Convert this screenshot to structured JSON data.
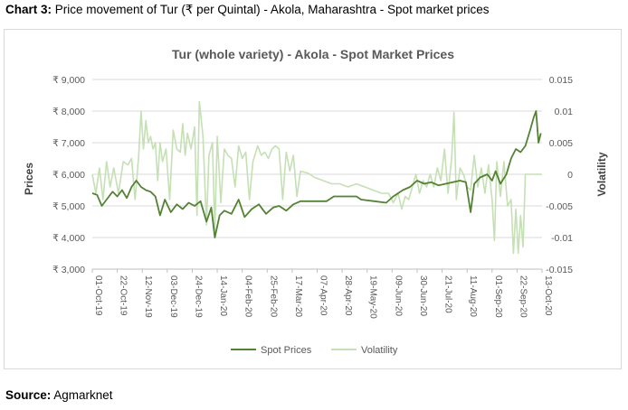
{
  "caption": {
    "label": "Chart 3:",
    "text": " Price movement of Tur (₹ per Quintal) - Akola, Maharashtra - Spot market prices"
  },
  "source": {
    "label": "Source:",
    "text": " Agmarknet"
  },
  "colors": {
    "spot": "#548235",
    "volatility": "#c5e0b4",
    "grid": "#d9d9d9",
    "text": "#595959"
  },
  "chart_data": {
    "type": "line",
    "title": "Tur (whole variety) - Akola - Spot Market Prices",
    "ylabel": "Prices",
    "y2label": "Volatility",
    "ylim": [
      3000,
      9000
    ],
    "y2lim": [
      -0.015,
      0.015
    ],
    "y_ticks": [
      "₹ 3,000",
      "₹ 4,000",
      "₹ 5,000",
      "₹ 6,000",
      "₹ 7,000",
      "₹ 8,000",
      "₹ 9,000"
    ],
    "y_tick_values": [
      3000,
      4000,
      5000,
      6000,
      7000,
      8000,
      9000
    ],
    "y2_ticks": [
      "-0.015",
      "-0.01",
      "-0.005",
      "0",
      "0.005",
      "0.01",
      "0.015"
    ],
    "y2_tick_values": [
      -0.015,
      -0.01,
      -0.005,
      0,
      0.005,
      0.01,
      0.015
    ],
    "x_ticks": [
      "01-Oct-19",
      "22-Oct-19",
      "12-Nov-19",
      "03-Dec-19",
      "24-Dec-19",
      "14-Jan-20",
      "04-Feb-20",
      "25-Feb-20",
      "17-Mar-20",
      "07-Apr-20",
      "28-Apr-20",
      "19-May-20",
      "09-Jun-20",
      "30-Jun-20",
      "21-Jul-20",
      "11-Aug-20",
      "01-Sep-20",
      "22-Sep-20",
      "13-Oct-20"
    ],
    "grid": true,
    "legend_position": "bottom",
    "series": [
      {
        "name": "Spot Prices",
        "points": [
          [
            "01-Oct-19",
            5400
          ],
          [
            "05-Oct-19",
            5350
          ],
          [
            "09-Oct-19",
            5000
          ],
          [
            "13-Oct-19",
            5200
          ],
          [
            "18-Oct-19",
            5450
          ],
          [
            "22-Oct-19",
            5300
          ],
          [
            "26-Oct-19",
            5500
          ],
          [
            "30-Oct-19",
            5250
          ],
          [
            "03-Nov-19",
            5600
          ],
          [
            "07-Nov-19",
            5800
          ],
          [
            "11-Nov-19",
            5600
          ],
          [
            "15-Nov-19",
            5500
          ],
          [
            "19-Nov-19",
            5450
          ],
          [
            "23-Nov-19",
            5300
          ],
          [
            "27-Nov-19",
            4700
          ],
          [
            "01-Dec-19",
            5200
          ],
          [
            "06-Dec-19",
            4800
          ],
          [
            "11-Dec-19",
            5050
          ],
          [
            "16-Dec-19",
            4900
          ],
          [
            "21-Dec-19",
            5100
          ],
          [
            "26-Dec-19",
            5000
          ],
          [
            "31-Dec-19",
            5150
          ],
          [
            "05-Jan-20",
            4500
          ],
          [
            "09-Jan-20",
            4950
          ],
          [
            "12-Jan-20",
            4000
          ],
          [
            "16-Jan-20",
            4700
          ],
          [
            "20-Jan-20",
            4850
          ],
          [
            "26-Jan-20",
            4750
          ],
          [
            "01-Feb-20",
            5200
          ],
          [
            "06-Feb-20",
            4650
          ],
          [
            "12-Feb-20",
            4900
          ],
          [
            "18-Feb-20",
            5050
          ],
          [
            "24-Feb-20",
            4750
          ],
          [
            "01-Mar-20",
            4950
          ],
          [
            "06-Mar-20",
            5000
          ],
          [
            "12-Mar-20",
            4850
          ],
          [
            "18-Mar-20",
            5050
          ],
          [
            "24-Mar-20",
            5150
          ],
          [
            "15-Apr-20",
            5150
          ],
          [
            "21-Apr-20",
            5300
          ],
          [
            "10-May-20",
            5300
          ],
          [
            "14-May-20",
            5200
          ],
          [
            "25-May-20",
            5150
          ],
          [
            "04-Jun-20",
            5100
          ],
          [
            "10-Jun-20",
            5300
          ],
          [
            "18-Jun-20",
            5500
          ],
          [
            "24-Jun-20",
            5600
          ],
          [
            "30-Jun-20",
            5800
          ],
          [
            "06-Jul-20",
            5700
          ],
          [
            "12-Jul-20",
            5750
          ],
          [
            "18-Jul-20",
            5650
          ],
          [
            "24-Jul-20",
            5700
          ],
          [
            "30-Jul-20",
            5750
          ],
          [
            "05-Aug-20",
            5800
          ],
          [
            "10-Aug-20",
            5750
          ],
          [
            "14-Aug-20",
            4800
          ],
          [
            "17-Aug-20",
            5700
          ],
          [
            "22-Aug-20",
            5900
          ],
          [
            "28-Aug-20",
            6000
          ],
          [
            "01-Sep-20",
            5800
          ],
          [
            "04-Sep-20",
            6100
          ],
          [
            "08-Sep-20",
            5700
          ],
          [
            "13-Sep-20",
            6000
          ],
          [
            "17-Sep-20",
            6500
          ],
          [
            "21-Sep-20",
            6800
          ],
          [
            "25-Sep-20",
            6700
          ],
          [
            "29-Sep-20",
            6900
          ],
          [
            "03-Oct-20",
            7400
          ],
          [
            "06-Oct-20",
            7800
          ],
          [
            "08-Oct-20",
            8000
          ],
          [
            "10-Oct-20",
            7000
          ],
          [
            "12-Oct-20",
            7300
          ]
        ]
      },
      {
        "name": "Volatility",
        "axis": "secondary",
        "points": [
          [
            "01-Oct-19",
            0
          ],
          [
            "04-Oct-19",
            -0.003
          ],
          [
            "07-Oct-19",
            0.001
          ],
          [
            "10-Oct-19",
            -0.004
          ],
          [
            "13-Oct-19",
            0.002
          ],
          [
            "16-Oct-19",
            -0.002
          ],
          [
            "19-Oct-19",
            0.001
          ],
          [
            "23-Oct-19",
            -0.003
          ],
          [
            "27-Oct-19",
            0.002
          ],
          [
            "31-Oct-19",
            0.0015
          ],
          [
            "03-Nov-19",
            0.0025
          ],
          [
            "06-Nov-19",
            -0.004
          ],
          [
            "09-Nov-19",
            0.003
          ],
          [
            "11-Nov-19",
            0.01
          ],
          [
            "13-Nov-19",
            0.004
          ],
          [
            "15-Nov-19",
            0.0085
          ],
          [
            "17-Nov-19",
            0.005
          ],
          [
            "19-Nov-19",
            0.006
          ],
          [
            "21-Nov-19",
            0.004
          ],
          [
            "23-Nov-19",
            0.005
          ],
          [
            "25-Nov-19",
            -0.001
          ],
          [
            "27-Nov-19",
            0.005
          ],
          [
            "29-Nov-19",
            0.002
          ],
          [
            "02-Dec-19",
            0.004
          ],
          [
            "05-Dec-19",
            -0.004
          ],
          [
            "08-Dec-19",
            0.007
          ],
          [
            "11-Dec-19",
            0.004
          ],
          [
            "14-Dec-19",
            0.0035
          ],
          [
            "16-Dec-19",
            0.008
          ],
          [
            "18-Dec-19",
            0.003
          ],
          [
            "20-Dec-19",
            0.0065
          ],
          [
            "23-Dec-19",
            0.004
          ],
          [
            "26-Dec-19",
            0.0075
          ],
          [
            "28-Dec-19",
            -0.0065
          ],
          [
            "30-Dec-19",
            0.0115
          ],
          [
            "02-Jan-20",
            0.006
          ],
          [
            "05-Jan-20",
            -0.008
          ],
          [
            "07-Jan-20",
            0.003
          ],
          [
            "10-Jan-20",
            0.005
          ],
          [
            "12-Jan-20",
            -0.009
          ],
          [
            "14-Jan-20",
            0.006
          ],
          [
            "17-Jan-20",
            -0.0045
          ],
          [
            "20-Jan-20",
            0.004
          ],
          [
            "23-Jan-20",
            0.003
          ],
          [
            "26-Jan-20",
            0.0025
          ],
          [
            "29-Jan-20",
            -0.002
          ],
          [
            "01-Feb-20",
            0.0045
          ],
          [
            "04-Feb-20",
            0.0025
          ],
          [
            "07-Feb-20",
            0.0035
          ],
          [
            "10-Feb-20",
            -0.004
          ],
          [
            "13-Feb-20",
            0.002
          ],
          [
            "17-Feb-20",
            0.0045
          ],
          [
            "20-Feb-20",
            0.003
          ],
          [
            "23-Feb-20",
            0.0035
          ],
          [
            "26-Feb-20",
            0.0025
          ],
          [
            "29-Feb-20",
            0.004
          ],
          [
            "03-Mar-20",
            0.0045
          ],
          [
            "06-Mar-20",
            0.004
          ],
          [
            "09-Mar-20",
            -0.004
          ],
          [
            "12-Mar-20",
            0.0035
          ],
          [
            "15-Mar-20",
            0.0005
          ],
          [
            "18-Mar-20",
            0.003
          ],
          [
            "21-Mar-20",
            -0.0035
          ],
          [
            "24-Mar-20",
            0.0005
          ],
          [
            "30-Mar-20",
            0.0002
          ],
          [
            "05-Apr-20",
            -0.0005
          ],
          [
            "12-Apr-20",
            -0.001
          ],
          [
            "19-Apr-20",
            -0.0015
          ],
          [
            "26-Apr-20",
            -0.0015
          ],
          [
            "03-May-20",
            -0.002
          ],
          [
            "10-May-20",
            -0.0015
          ],
          [
            "17-May-20",
            -0.002
          ],
          [
            "24-May-20",
            -0.0025
          ],
          [
            "31-May-20",
            -0.003
          ],
          [
            "06-Jun-20",
            -0.003
          ],
          [
            "10-Jun-20",
            -0.0045
          ],
          [
            "14-Jun-20",
            -0.003
          ],
          [
            "17-Jun-20",
            -0.0055
          ],
          [
            "20-Jun-20",
            -0.0035
          ],
          [
            "23-Jun-20",
            -0.004
          ],
          [
            "26-Jun-20",
            -0.002
          ],
          [
            "29-Jun-20",
            0
          ],
          [
            "02-Jul-20",
            -0.003
          ],
          [
            "05-Jul-20",
            -0.001
          ],
          [
            "08-Jul-20",
            -0.002
          ],
          [
            "11-Jul-20",
            0
          ],
          [
            "14-Jul-20",
            -0.002
          ],
          [
            "17-Jul-20",
            0.001
          ],
          [
            "20-Jul-20",
            -0.001
          ],
          [
            "23-Jul-20",
            0.004
          ],
          [
            "26-Jul-20",
            -0.003
          ],
          [
            "29-Jul-20",
            0.0025
          ],
          [
            "31-Jul-20",
            0.0098
          ],
          [
            "02-Aug-20",
            -0.004
          ],
          [
            "05-Aug-20",
            0.001
          ],
          [
            "08-Aug-20",
            0
          ],
          [
            "11-Aug-20",
            -0.002
          ],
          [
            "14-Aug-20",
            -0.0025
          ],
          [
            "17-Aug-20",
            0.003
          ],
          [
            "20-Aug-20",
            -0.002
          ],
          [
            "23-Aug-20",
            0.001
          ],
          [
            "26-Aug-20",
            -0.003
          ],
          [
            "29-Aug-20",
            0.0015
          ],
          [
            "01-Sep-20",
            -0.004
          ],
          [
            "03-Sep-20",
            -0.0105
          ],
          [
            "05-Sep-20",
            0.002
          ],
          [
            "08-Sep-20",
            -0.0035
          ],
          [
            "11-Sep-20",
            0.002
          ],
          [
            "14-Sep-20",
            -0.005
          ],
          [
            "17-Sep-20",
            -0.004
          ],
          [
            "19-Sep-20",
            -0.0125
          ],
          [
            "21-Sep-20",
            -0.0055
          ],
          [
            "23-Sep-20",
            -0.0125
          ],
          [
            "25-Sep-20",
            -0.0065
          ],
          [
            "27-Sep-20",
            -0.0115
          ],
          [
            "29-Sep-20",
            0
          ],
          [
            "02-Oct-20",
            0
          ],
          [
            "06-Oct-20",
            0
          ],
          [
            "09-Oct-20",
            0
          ],
          [
            "13-Oct-20",
            0
          ]
        ]
      }
    ]
  }
}
